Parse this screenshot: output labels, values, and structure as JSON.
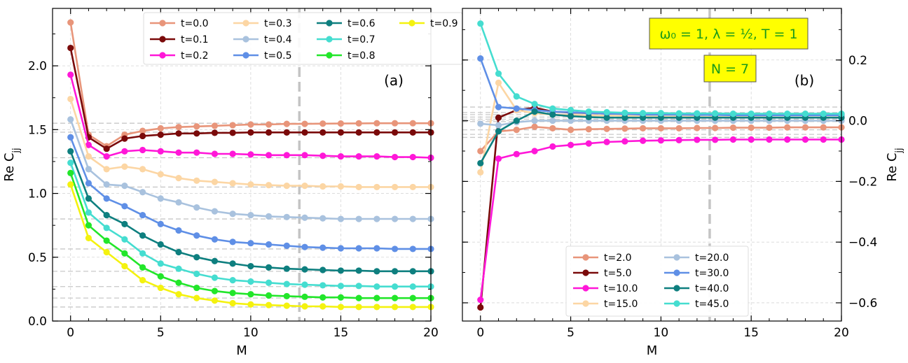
{
  "chart_data": [
    {
      "type": "line",
      "panel_label": "(a)",
      "xlabel": "M",
      "ylabel": "Re C_jj",
      "xlim": [
        -1,
        20
      ],
      "ylim": [
        0.0,
        2.45
      ],
      "xticks": [
        "0",
        "5",
        "10",
        "15",
        "20"
      ],
      "yticks": [
        "0.0",
        "0.5",
        "1.0",
        "1.5",
        "2.0"
      ],
      "grid": true,
      "legend_position": "top, 4 columns",
      "vline_x": 12.7,
      "reference_lines": [
        1.55,
        1.48,
        1.28,
        1.05,
        0.8,
        0.565,
        0.39,
        0.27,
        0.18,
        0.11
      ],
      "x": [
        0,
        1,
        2,
        3,
        4,
        5,
        6,
        7,
        8,
        9,
        10,
        11,
        12,
        13,
        14,
        15,
        16,
        17,
        18,
        19,
        20
      ],
      "series": [
        {
          "name": "t=0.0",
          "color": "#e8957a",
          "values": [
            2.34,
            1.46,
            1.37,
            1.46,
            1.49,
            1.51,
            1.52,
            1.525,
            1.53,
            1.535,
            1.54,
            1.54,
            1.545,
            1.545,
            1.547,
            1.548,
            1.549,
            1.55,
            1.55,
            1.55,
            1.55
          ]
        },
        {
          "name": "t=0.1",
          "color": "#7a0a0a",
          "values": [
            2.14,
            1.44,
            1.35,
            1.43,
            1.45,
            1.46,
            1.47,
            1.47,
            1.475,
            1.475,
            1.478,
            1.478,
            1.478,
            1.478,
            1.478,
            1.478,
            1.478,
            1.478,
            1.478,
            1.478,
            1.478
          ]
        },
        {
          "name": "t=0.2",
          "color": "#ff17d8",
          "values": [
            1.93,
            1.38,
            1.29,
            1.33,
            1.34,
            1.33,
            1.32,
            1.32,
            1.31,
            1.31,
            1.305,
            1.3,
            1.3,
            1.3,
            1.295,
            1.29,
            1.29,
            1.29,
            1.285,
            1.285,
            1.28
          ]
        },
        {
          "name": "t=0.3",
          "color": "#fcd6a4",
          "values": [
            1.74,
            1.29,
            1.19,
            1.21,
            1.19,
            1.15,
            1.12,
            1.1,
            1.09,
            1.08,
            1.07,
            1.065,
            1.06,
            1.06,
            1.055,
            1.055,
            1.05,
            1.05,
            1.05,
            1.05,
            1.05
          ]
        },
        {
          "name": "t=0.4",
          "color": "#a9c2de",
          "values": [
            1.58,
            1.19,
            1.07,
            1.06,
            1.01,
            0.96,
            0.93,
            0.89,
            0.86,
            0.84,
            0.83,
            0.82,
            0.815,
            0.81,
            0.805,
            0.8,
            0.8,
            0.8,
            0.8,
            0.8,
            0.8
          ]
        },
        {
          "name": "t=0.5",
          "color": "#5f8fe6",
          "values": [
            1.44,
            1.08,
            0.96,
            0.9,
            0.83,
            0.76,
            0.71,
            0.67,
            0.64,
            0.62,
            0.61,
            0.6,
            0.59,
            0.58,
            0.575,
            0.57,
            0.57,
            0.57,
            0.565,
            0.565,
            0.565
          ]
        },
        {
          "name": "t=0.6",
          "color": "#0e7f7f",
          "values": [
            1.33,
            0.96,
            0.83,
            0.76,
            0.67,
            0.6,
            0.54,
            0.5,
            0.47,
            0.45,
            0.43,
            0.42,
            0.41,
            0.405,
            0.4,
            0.395,
            0.395,
            0.39,
            0.39,
            0.39,
            0.39
          ]
        },
        {
          "name": "t=0.7",
          "color": "#45ddd0",
          "values": [
            1.24,
            0.85,
            0.73,
            0.64,
            0.53,
            0.45,
            0.41,
            0.37,
            0.34,
            0.32,
            0.31,
            0.3,
            0.29,
            0.285,
            0.28,
            0.275,
            0.275,
            0.27,
            0.27,
            0.27,
            0.27
          ]
        },
        {
          "name": "t=0.8",
          "color": "#22e62a",
          "values": [
            1.16,
            0.75,
            0.63,
            0.53,
            0.42,
            0.35,
            0.3,
            0.26,
            0.235,
            0.22,
            0.21,
            0.2,
            0.195,
            0.19,
            0.185,
            0.185,
            0.18,
            0.18,
            0.18,
            0.18,
            0.18
          ]
        },
        {
          "name": "t=0.9",
          "color": "#f4f20f",
          "values": [
            1.07,
            0.65,
            0.54,
            0.43,
            0.32,
            0.26,
            0.21,
            0.18,
            0.16,
            0.14,
            0.13,
            0.125,
            0.12,
            0.115,
            0.115,
            0.11,
            0.11,
            0.11,
            0.11,
            0.11,
            0.11
          ]
        }
      ]
    },
    {
      "type": "line",
      "panel_label": "(b)",
      "xlabel": "M",
      "ylabel": "Re C_jj",
      "xlim": [
        -1,
        20
      ],
      "ylim": [
        -0.66,
        0.37
      ],
      "xticks": [
        "0",
        "5",
        "10",
        "15",
        "20"
      ],
      "yticks": [
        "−0.6",
        "−0.4",
        "−0.2",
        "0.0",
        "0.2"
      ],
      "ytick_values": [
        -0.6,
        -0.4,
        -0.2,
        0.0,
        0.2
      ],
      "grid": true,
      "legend_position": "bottom-right, 2 columns",
      "vline_x": 12.7,
      "reference_lines": [
        0.045,
        0.027,
        0.02,
        0.012,
        0.005,
        -0.003,
        -0.03,
        -0.045,
        -0.055
      ],
      "annotation_params": "ω₀ = 1, λ = ½, T = 1",
      "annotation_n": "N = 7",
      "x": [
        0,
        1,
        2,
        3,
        4,
        5,
        6,
        7,
        8,
        9,
        10,
        11,
        12,
        13,
        14,
        15,
        16,
        17,
        18,
        19,
        20
      ],
      "series": [
        {
          "name": "t=2.0",
          "color": "#e8957a",
          "values": [
            -0.1,
            -0.035,
            -0.03,
            -0.02,
            -0.025,
            -0.03,
            -0.028,
            -0.027,
            -0.026,
            -0.025,
            -0.025,
            -0.025,
            -0.024,
            -0.024,
            -0.023,
            -0.023,
            -0.023,
            -0.022,
            -0.022,
            -0.022,
            -0.022
          ]
        },
        {
          "name": "t=5.0",
          "color": "#7a0a0a",
          "values": [
            -0.615,
            0.01,
            0.035,
            0.043,
            0.03,
            0.027,
            0.025,
            0.024,
            0.023,
            0.022,
            0.021,
            0.021,
            0.02,
            0.02,
            0.02,
            0.02,
            0.02,
            0.02,
            0.02,
            0.02,
            0.02
          ]
        },
        {
          "name": "t=10.0",
          "color": "#ff17d8",
          "values": [
            -0.59,
            -0.125,
            -0.11,
            -0.1,
            -0.085,
            -0.08,
            -0.075,
            -0.07,
            -0.068,
            -0.066,
            -0.065,
            -0.064,
            -0.063,
            -0.063,
            -0.062,
            -0.062,
            -0.062,
            -0.062,
            -0.062,
            -0.062,
            -0.062
          ]
        },
        {
          "name": "t=15.0",
          "color": "#fcd6a4",
          "values": [
            -0.17,
            0.125,
            0.035,
            0.025,
            0.02,
            0.019,
            0.018,
            0.017,
            0.016,
            0.015,
            0.014,
            0.014,
            0.013,
            0.012,
            0.012,
            0.012,
            0.011,
            0.011,
            0.011,
            0.011,
            0.011
          ]
        },
        {
          "name": "t=20.0",
          "color": "#a9c2de",
          "values": [
            -0.01,
            -0.015,
            -0.005,
            0.0,
            0.0,
            0.0,
            0.0,
            0.0,
            0.0,
            0.0,
            0.0,
            0.0,
            0.0,
            0.0,
            0.0,
            0.0,
            0.0,
            0.0,
            0.0,
            0.0,
            0.0
          ]
        },
        {
          "name": "t=30.0",
          "color": "#5f8fe6",
          "values": [
            0.205,
            0.045,
            0.04,
            0.035,
            0.03,
            0.028,
            0.025,
            0.023,
            0.022,
            0.02,
            0.02,
            0.02,
            0.019,
            0.019,
            0.018,
            0.018,
            0.018,
            0.018,
            0.018,
            0.018,
            0.018
          ]
        },
        {
          "name": "t=40.0",
          "color": "#0e7f7f",
          "values": [
            -0.14,
            -0.035,
            0.0,
            0.03,
            0.02,
            0.015,
            0.012,
            0.01,
            0.01,
            0.01,
            0.01,
            0.01,
            0.01,
            0.01,
            0.01,
            0.01,
            0.01,
            0.01,
            0.01,
            0.01,
            0.01
          ]
        },
        {
          "name": "t=45.0",
          "color": "#45ddd0",
          "values": [
            0.32,
            0.155,
            0.08,
            0.055,
            0.04,
            0.035,
            0.03,
            0.028,
            0.026,
            0.025,
            0.025,
            0.024,
            0.024,
            0.024,
            0.023,
            0.023,
            0.023,
            0.023,
            0.023,
            0.023,
            0.023
          ]
        }
      ]
    }
  ]
}
